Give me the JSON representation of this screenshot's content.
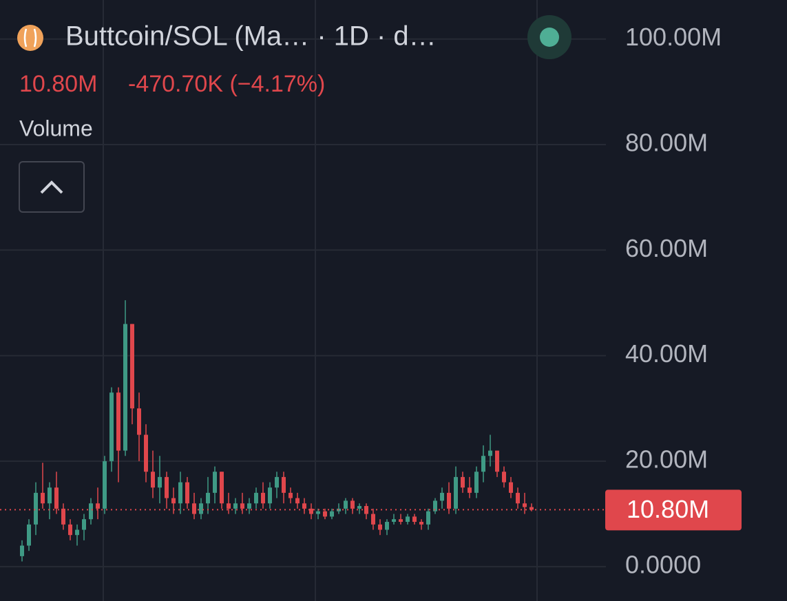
{
  "chart_data": {
    "type": "candlestick",
    "title": "Buttcoin/SOL (Ma… · 1D · d…",
    "change": "-470.70K (−4.17%)",
    "indicator": "Volume",
    "last_price": {
      "value": 10.8,
      "label": "10.80M"
    },
    "up_color": "#3f9a85",
    "down_color": "#e0474c",
    "ylim": [
      -6.5,
      107.4
    ],
    "yticks": [
      {
        "value": 0,
        "label": "0.0000"
      },
      {
        "value": 20,
        "label": "20.00M"
      },
      {
        "value": 40,
        "label": "40.00M"
      },
      {
        "value": 60,
        "label": "60.00M"
      },
      {
        "value": 80,
        "label": "80.00M"
      },
      {
        "value": 100,
        "label": "100.00M"
      }
    ],
    "grid": true,
    "open": [
      2,
      4,
      8,
      14,
      12,
      15,
      11,
      8,
      6,
      7,
      9,
      12,
      11,
      20,
      33,
      22,
      46,
      30,
      25,
      18,
      15,
      17,
      13,
      12,
      16,
      12,
      10,
      12,
      14,
      18,
      12,
      11,
      12,
      11,
      12,
      14,
      12,
      15,
      17,
      14,
      13,
      12,
      11,
      10,
      10.5,
      9.5,
      10.5,
      11,
      12.5,
      11,
      11.5,
      10,
      8,
      7,
      8.5,
      9,
      8.5,
      9.5,
      8.5,
      8,
      10.5,
      12.5,
      14,
      11,
      17,
      15,
      14,
      18,
      21,
      22,
      18,
      16,
      14,
      12,
      11.3
    ],
    "high": [
      5,
      9,
      16,
      19.7,
      16,
      18,
      12,
      9,
      8,
      10,
      13,
      15,
      21,
      34,
      34,
      50.5,
      46,
      33,
      27,
      22,
      21,
      18,
      15,
      18,
      17,
      14,
      13,
      17,
      19,
      18,
      14,
      13,
      14,
      13,
      15,
      16,
      16,
      18,
      18,
      15,
      14,
      13,
      12,
      11,
      11,
      11,
      12,
      13,
      13,
      12,
      12,
      11,
      9,
      9,
      10,
      10,
      10,
      10,
      9,
      11,
      13,
      15,
      16,
      19,
      18,
      17,
      19,
      23,
      25,
      22,
      19,
      17,
      15,
      14,
      12
    ],
    "low": [
      1,
      3,
      6,
      11,
      9,
      10,
      7,
      5,
      4,
      5,
      8,
      9,
      10,
      18,
      16,
      21,
      27,
      20,
      16,
      13,
      12,
      11,
      10,
      10,
      11,
      9,
      9,
      10,
      12,
      11,
      10,
      10,
      10,
      10,
      11,
      11,
      11,
      13,
      12,
      12,
      11,
      10,
      9,
      9,
      9,
      9,
      10,
      10,
      10,
      10,
      9,
      7,
      6,
      6,
      8,
      8,
      8,
      8,
      7,
      7,
      10,
      11,
      10,
      10,
      14,
      13,
      13,
      16,
      19,
      17,
      15,
      13,
      11,
      10,
      10.5
    ],
    "close": [
      4,
      8,
      14,
      12,
      15,
      11,
      8,
      6,
      7,
      9,
      12,
      11,
      20,
      33,
      22,
      46,
      30,
      25,
      18,
      15,
      17,
      13,
      12,
      16,
      12,
      10,
      12,
      14,
      18,
      12,
      11,
      12,
      11,
      12,
      14,
      12,
      15,
      17,
      14,
      13,
      12,
      11,
      10,
      10.5,
      9.5,
      10.5,
      11,
      12.5,
      11,
      11.5,
      10,
      8,
      7,
      8.5,
      9,
      8.5,
      9.5,
      8.5,
      8,
      10.5,
      12.5,
      14,
      11,
      17,
      15,
      14,
      18,
      21,
      22,
      18,
      16,
      14,
      12,
      11.3,
      10.8
    ]
  }
}
